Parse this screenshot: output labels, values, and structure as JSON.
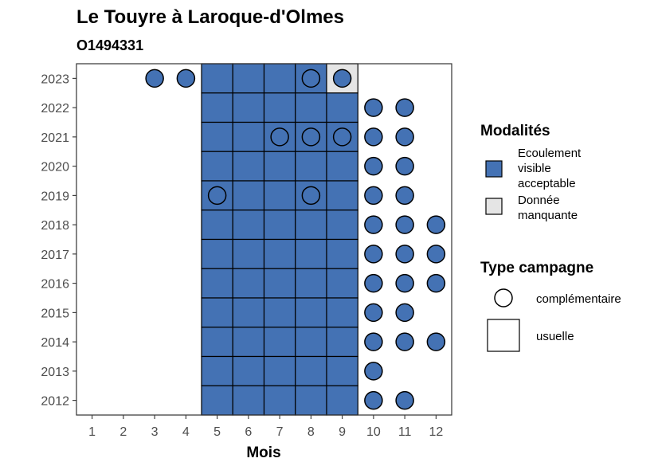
{
  "chart_data": {
    "type": "heatmap",
    "title": "Le Touyre à Laroque-d'Olmes",
    "subtitle": "O1494331",
    "xlabel": "Mois",
    "ylabel": "",
    "x_ticks": [
      1,
      2,
      3,
      4,
      5,
      6,
      7,
      8,
      9,
      10,
      11,
      12
    ],
    "y_ticks": [
      2023,
      2022,
      2021,
      2020,
      2019,
      2018,
      2017,
      2016,
      2015,
      2014,
      2013,
      2012
    ],
    "xlim": [
      0.5,
      12.5
    ],
    "ylim": [
      2011.5,
      2023.5
    ],
    "grid": false,
    "legend_placement": "right",
    "colors": {
      "ecoulement_visible_acceptable": "#4472b4",
      "donnee_manquante": "#e5e5e5",
      "outline": "#000000",
      "panel_border": "#333333"
    },
    "legend": {
      "modalites_title": "Modalités",
      "modalites": [
        {
          "key": "ecoulement_visible_acceptable",
          "lines": [
            "Ecoulement",
            "visible",
            "acceptable"
          ],
          "color": "#4472b4"
        },
        {
          "key": "donnee_manquante",
          "lines": [
            "Donnée",
            "manquante"
          ],
          "color": "#e5e5e5"
        }
      ],
      "type_title": "Type campagne",
      "types": [
        {
          "key": "complementaire",
          "label": "complémentaire",
          "shape": "circle"
        },
        {
          "key": "usuelle",
          "label": "usuelle",
          "shape": "square"
        }
      ]
    },
    "points": [
      {
        "year": 2023,
        "month": 3,
        "type": "complementaire",
        "modalite": "ecoulement_visible_acceptable"
      },
      {
        "year": 2023,
        "month": 4,
        "type": "complementaire",
        "modalite": "ecoulement_visible_acceptable"
      },
      {
        "year": 2023,
        "month": 5,
        "type": "usuelle",
        "modalite": "ecoulement_visible_acceptable"
      },
      {
        "year": 2023,
        "month": 6,
        "type": "usuelle",
        "modalite": "ecoulement_visible_acceptable"
      },
      {
        "year": 2023,
        "month": 7,
        "type": "usuelle",
        "modalite": "ecoulement_visible_acceptable"
      },
      {
        "year": 2023,
        "month": 8,
        "type": "usuelle",
        "modalite": "ecoulement_visible_acceptable"
      },
      {
        "year": 2023,
        "month": 8,
        "type": "complementaire",
        "modalite": "ecoulement_visible_acceptable"
      },
      {
        "year": 2023,
        "month": 9,
        "type": "usuelle",
        "modalite": "donnee_manquante"
      },
      {
        "year": 2023,
        "month": 9,
        "type": "complementaire",
        "modalite": "ecoulement_visible_acceptable"
      },
      {
        "year": 2022,
        "month": 5,
        "type": "usuelle",
        "modalite": "ecoulement_visible_acceptable"
      },
      {
        "year": 2022,
        "month": 6,
        "type": "usuelle",
        "modalite": "ecoulement_visible_acceptable"
      },
      {
        "year": 2022,
        "month": 7,
        "type": "usuelle",
        "modalite": "ecoulement_visible_acceptable"
      },
      {
        "year": 2022,
        "month": 8,
        "type": "usuelle",
        "modalite": "ecoulement_visible_acceptable"
      },
      {
        "year": 2022,
        "month": 9,
        "type": "usuelle",
        "modalite": "ecoulement_visible_acceptable"
      },
      {
        "year": 2022,
        "month": 10,
        "type": "complementaire",
        "modalite": "ecoulement_visible_acceptable"
      },
      {
        "year": 2022,
        "month": 11,
        "type": "complementaire",
        "modalite": "ecoulement_visible_acceptable"
      },
      {
        "year": 2021,
        "month": 5,
        "type": "usuelle",
        "modalite": "ecoulement_visible_acceptable"
      },
      {
        "year": 2021,
        "month": 6,
        "type": "usuelle",
        "modalite": "ecoulement_visible_acceptable"
      },
      {
        "year": 2021,
        "month": 7,
        "type": "usuelle",
        "modalite": "ecoulement_visible_acceptable"
      },
      {
        "year": 2021,
        "month": 7,
        "type": "complementaire",
        "modalite": "ecoulement_visible_acceptable"
      },
      {
        "year": 2021,
        "month": 8,
        "type": "usuelle",
        "modalite": "ecoulement_visible_acceptable"
      },
      {
        "year": 2021,
        "month": 8,
        "type": "complementaire",
        "modalite": "ecoulement_visible_acceptable"
      },
      {
        "year": 2021,
        "month": 9,
        "type": "usuelle",
        "modalite": "ecoulement_visible_acceptable"
      },
      {
        "year": 2021,
        "month": 9,
        "type": "complementaire",
        "modalite": "ecoulement_visible_acceptable"
      },
      {
        "year": 2021,
        "month": 10,
        "type": "complementaire",
        "modalite": "ecoulement_visible_acceptable"
      },
      {
        "year": 2021,
        "month": 11,
        "type": "complementaire",
        "modalite": "ecoulement_visible_acceptable"
      },
      {
        "year": 2020,
        "month": 5,
        "type": "usuelle",
        "modalite": "ecoulement_visible_acceptable"
      },
      {
        "year": 2020,
        "month": 6,
        "type": "usuelle",
        "modalite": "ecoulement_visible_acceptable"
      },
      {
        "year": 2020,
        "month": 7,
        "type": "usuelle",
        "modalite": "ecoulement_visible_acceptable"
      },
      {
        "year": 2020,
        "month": 8,
        "type": "usuelle",
        "modalite": "ecoulement_visible_acceptable"
      },
      {
        "year": 2020,
        "month": 9,
        "type": "usuelle",
        "modalite": "ecoulement_visible_acceptable"
      },
      {
        "year": 2020,
        "month": 10,
        "type": "complementaire",
        "modalite": "ecoulement_visible_acceptable"
      },
      {
        "year": 2020,
        "month": 11,
        "type": "complementaire",
        "modalite": "ecoulement_visible_acceptable"
      },
      {
        "year": 2019,
        "month": 5,
        "type": "usuelle",
        "modalite": "ecoulement_visible_acceptable"
      },
      {
        "year": 2019,
        "month": 5,
        "type": "complementaire",
        "modalite": "ecoulement_visible_acceptable"
      },
      {
        "year": 2019,
        "month": 6,
        "type": "usuelle",
        "modalite": "ecoulement_visible_acceptable"
      },
      {
        "year": 2019,
        "month": 7,
        "type": "usuelle",
        "modalite": "ecoulement_visible_acceptable"
      },
      {
        "year": 2019,
        "month": 8,
        "type": "usuelle",
        "modalite": "ecoulement_visible_acceptable"
      },
      {
        "year": 2019,
        "month": 8,
        "type": "complementaire",
        "modalite": "ecoulement_visible_acceptable"
      },
      {
        "year": 2019,
        "month": 9,
        "type": "usuelle",
        "modalite": "ecoulement_visible_acceptable"
      },
      {
        "year": 2019,
        "month": 10,
        "type": "complementaire",
        "modalite": "ecoulement_visible_acceptable"
      },
      {
        "year": 2019,
        "month": 11,
        "type": "complementaire",
        "modalite": "ecoulement_visible_acceptable"
      },
      {
        "year": 2018,
        "month": 5,
        "type": "usuelle",
        "modalite": "ecoulement_visible_acceptable"
      },
      {
        "year": 2018,
        "month": 6,
        "type": "usuelle",
        "modalite": "ecoulement_visible_acceptable"
      },
      {
        "year": 2018,
        "month": 7,
        "type": "usuelle",
        "modalite": "ecoulement_visible_acceptable"
      },
      {
        "year": 2018,
        "month": 8,
        "type": "usuelle",
        "modalite": "ecoulement_visible_acceptable"
      },
      {
        "year": 2018,
        "month": 9,
        "type": "usuelle",
        "modalite": "ecoulement_visible_acceptable"
      },
      {
        "year": 2018,
        "month": 10,
        "type": "complementaire",
        "modalite": "ecoulement_visible_acceptable"
      },
      {
        "year": 2018,
        "month": 11,
        "type": "complementaire",
        "modalite": "ecoulement_visible_acceptable"
      },
      {
        "year": 2018,
        "month": 12,
        "type": "complementaire",
        "modalite": "ecoulement_visible_acceptable"
      },
      {
        "year": 2017,
        "month": 5,
        "type": "usuelle",
        "modalite": "ecoulement_visible_acceptable"
      },
      {
        "year": 2017,
        "month": 6,
        "type": "usuelle",
        "modalite": "ecoulement_visible_acceptable"
      },
      {
        "year": 2017,
        "month": 7,
        "type": "usuelle",
        "modalite": "ecoulement_visible_acceptable"
      },
      {
        "year": 2017,
        "month": 8,
        "type": "usuelle",
        "modalite": "ecoulement_visible_acceptable"
      },
      {
        "year": 2017,
        "month": 9,
        "type": "usuelle",
        "modalite": "ecoulement_visible_acceptable"
      },
      {
        "year": 2017,
        "month": 10,
        "type": "complementaire",
        "modalite": "ecoulement_visible_acceptable"
      },
      {
        "year": 2017,
        "month": 11,
        "type": "complementaire",
        "modalite": "ecoulement_visible_acceptable"
      },
      {
        "year": 2017,
        "month": 12,
        "type": "complementaire",
        "modalite": "ecoulement_visible_acceptable"
      },
      {
        "year": 2016,
        "month": 5,
        "type": "usuelle",
        "modalite": "ecoulement_visible_acceptable"
      },
      {
        "year": 2016,
        "month": 6,
        "type": "usuelle",
        "modalite": "ecoulement_visible_acceptable"
      },
      {
        "year": 2016,
        "month": 7,
        "type": "usuelle",
        "modalite": "ecoulement_visible_acceptable"
      },
      {
        "year": 2016,
        "month": 8,
        "type": "usuelle",
        "modalite": "ecoulement_visible_acceptable"
      },
      {
        "year": 2016,
        "month": 9,
        "type": "usuelle",
        "modalite": "ecoulement_visible_acceptable"
      },
      {
        "year": 2016,
        "month": 10,
        "type": "complementaire",
        "modalite": "ecoulement_visible_acceptable"
      },
      {
        "year": 2016,
        "month": 11,
        "type": "complementaire",
        "modalite": "ecoulement_visible_acceptable"
      },
      {
        "year": 2016,
        "month": 12,
        "type": "complementaire",
        "modalite": "ecoulement_visible_acceptable"
      },
      {
        "year": 2015,
        "month": 5,
        "type": "usuelle",
        "modalite": "ecoulement_visible_acceptable"
      },
      {
        "year": 2015,
        "month": 6,
        "type": "usuelle",
        "modalite": "ecoulement_visible_acceptable"
      },
      {
        "year": 2015,
        "month": 7,
        "type": "usuelle",
        "modalite": "ecoulement_visible_acceptable"
      },
      {
        "year": 2015,
        "month": 8,
        "type": "usuelle",
        "modalite": "ecoulement_visible_acceptable"
      },
      {
        "year": 2015,
        "month": 9,
        "type": "usuelle",
        "modalite": "ecoulement_visible_acceptable"
      },
      {
        "year": 2015,
        "month": 10,
        "type": "complementaire",
        "modalite": "ecoulement_visible_acceptable"
      },
      {
        "year": 2015,
        "month": 11,
        "type": "complementaire",
        "modalite": "ecoulement_visible_acceptable"
      },
      {
        "year": 2014,
        "month": 5,
        "type": "usuelle",
        "modalite": "ecoulement_visible_acceptable"
      },
      {
        "year": 2014,
        "month": 6,
        "type": "usuelle",
        "modalite": "ecoulement_visible_acceptable"
      },
      {
        "year": 2014,
        "month": 7,
        "type": "usuelle",
        "modalite": "ecoulement_visible_acceptable"
      },
      {
        "year": 2014,
        "month": 8,
        "type": "usuelle",
        "modalite": "ecoulement_visible_acceptable"
      },
      {
        "year": 2014,
        "month": 9,
        "type": "usuelle",
        "modalite": "ecoulement_visible_acceptable"
      },
      {
        "year": 2014,
        "month": 10,
        "type": "complementaire",
        "modalite": "ecoulement_visible_acceptable"
      },
      {
        "year": 2014,
        "month": 11,
        "type": "complementaire",
        "modalite": "ecoulement_visible_acceptable"
      },
      {
        "year": 2014,
        "month": 12,
        "type": "complementaire",
        "modalite": "ecoulement_visible_acceptable"
      },
      {
        "year": 2013,
        "month": 5,
        "type": "usuelle",
        "modalite": "ecoulement_visible_acceptable"
      },
      {
        "year": 2013,
        "month": 6,
        "type": "usuelle",
        "modalite": "ecoulement_visible_acceptable"
      },
      {
        "year": 2013,
        "month": 7,
        "type": "usuelle",
        "modalite": "ecoulement_visible_acceptable"
      },
      {
        "year": 2013,
        "month": 8,
        "type": "usuelle",
        "modalite": "ecoulement_visible_acceptable"
      },
      {
        "year": 2013,
        "month": 9,
        "type": "usuelle",
        "modalite": "ecoulement_visible_acceptable"
      },
      {
        "year": 2013,
        "month": 10,
        "type": "complementaire",
        "modalite": "ecoulement_visible_acceptable"
      },
      {
        "year": 2012,
        "month": 5,
        "type": "usuelle",
        "modalite": "ecoulement_visible_acceptable"
      },
      {
        "year": 2012,
        "month": 6,
        "type": "usuelle",
        "modalite": "ecoulement_visible_acceptable"
      },
      {
        "year": 2012,
        "month": 7,
        "type": "usuelle",
        "modalite": "ecoulement_visible_acceptable"
      },
      {
        "year": 2012,
        "month": 8,
        "type": "usuelle",
        "modalite": "ecoulement_visible_acceptable"
      },
      {
        "year": 2012,
        "month": 9,
        "type": "usuelle",
        "modalite": "ecoulement_visible_acceptable"
      },
      {
        "year": 2012,
        "month": 10,
        "type": "complementaire",
        "modalite": "ecoulement_visible_acceptable"
      },
      {
        "year": 2012,
        "month": 11,
        "type": "complementaire",
        "modalite": "ecoulement_visible_acceptable"
      }
    ]
  }
}
